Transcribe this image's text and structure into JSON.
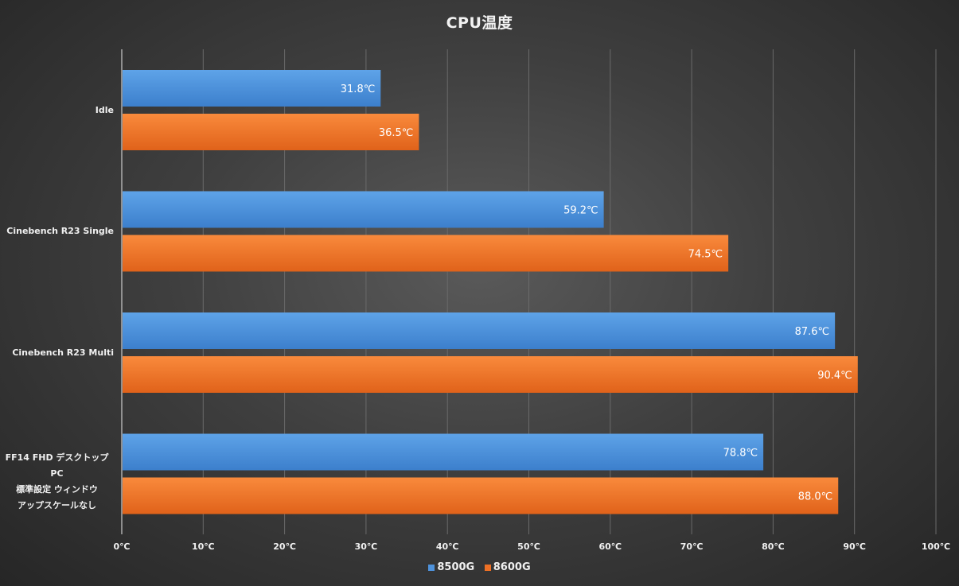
{
  "chart_data": {
    "type": "bar",
    "orientation": "horizontal",
    "title": "CPU温度",
    "categories": [
      "Idle",
      "Cinebench R23 Single",
      "Cinebench R23 Multi",
      "FF14 FHD デスクトップPC\n標準設定 ウィンドウ\nアップスケールなし"
    ],
    "series": [
      {
        "name": "8500G",
        "color": "#4e92db",
        "values": [
          31.8,
          59.2,
          87.6,
          78.8
        ],
        "labels": [
          "31.8℃",
          "59.2℃",
          "87.6℃",
          "78.8℃"
        ]
      },
      {
        "name": "8600G",
        "color": "#ee7025",
        "values": [
          36.5,
          74.5,
          90.4,
          88.0
        ],
        "labels": [
          "36.5℃",
          "74.5℃",
          "90.4℃",
          "88.0℃"
        ]
      }
    ],
    "xlim": [
      0,
      100
    ],
    "xticks": [
      "0℃",
      "10℃",
      "20℃",
      "30℃",
      "40℃",
      "50℃",
      "60℃",
      "70℃",
      "80℃",
      "90℃",
      "100℃"
    ],
    "grid": true,
    "legend_position": "bottom"
  }
}
